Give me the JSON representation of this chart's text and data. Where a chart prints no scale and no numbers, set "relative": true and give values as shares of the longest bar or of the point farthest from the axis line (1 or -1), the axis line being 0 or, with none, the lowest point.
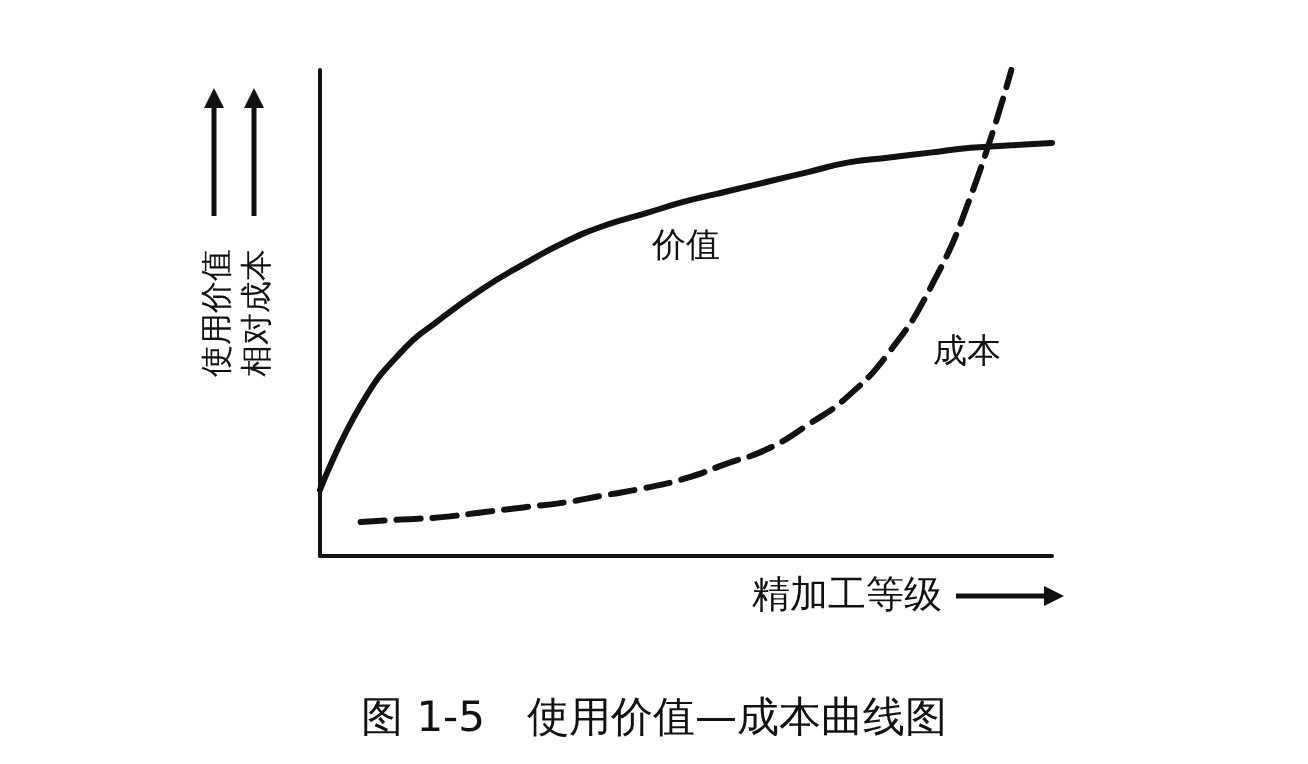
{
  "chart_data": {
    "type": "line",
    "title": "图 1-5　使用价值—成本曲线图",
    "xlabel": "精加工等级",
    "ylabel": "使用价值相对成本",
    "relative": true,
    "grid": false,
    "legend": false,
    "marker": "none",
    "categories": [
      null,
      null,
      null,
      null,
      null,
      null,
      null,
      null,
      null,
      null,
      null,
      null,
      null,
      null,
      null,
      null,
      null,
      null,
      null
    ],
    "series": [
      {
        "name": "价值",
        "color": "#111111",
        "line_style": "solid",
        "values": [
          0.136,
          0.31,
          0.42,
          0.49,
          0.55,
          0.6,
          0.645,
          0.68,
          0.705,
          0.73,
          0.75,
          0.77,
          0.79,
          0.81,
          0.82,
          0.83,
          0.84,
          0.845,
          0.85
        ]
      },
      {
        "name": "成本",
        "color": "#111111",
        "line_style": "dashed",
        "values": [
          null,
          0.07,
          0.075,
          0.08,
          0.09,
          0.1,
          0.11,
          0.125,
          0.14,
          0.16,
          0.19,
          0.22,
          0.27,
          0.33,
          0.42,
          0.55,
          0.74,
          1.0,
          null
        ]
      }
    ]
  }
}
